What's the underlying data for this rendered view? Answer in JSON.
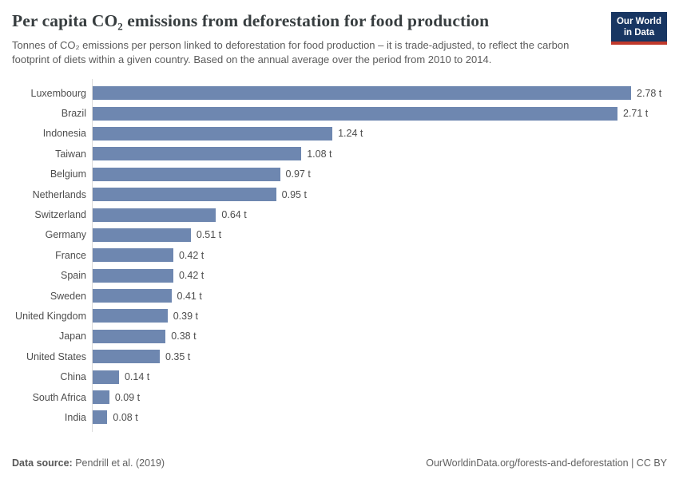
{
  "header": {
    "title": "Per capita CO₂ emissions from deforestation for food production",
    "subtitle": "Tonnes of CO₂ emissions per person linked to deforestation for food production – it is trade-adjusted, to reflect the carbon footprint of diets within a given country. Based on the annual average over the period from 2010 to 2014.",
    "logo_line1": "Our World",
    "logo_line2": "in Data"
  },
  "chart_data": {
    "type": "bar",
    "orientation": "horizontal",
    "title": "Per capita CO₂ emissions from deforestation for food production",
    "xlabel": "",
    "ylabel": "",
    "unit": "t",
    "xlim": [
      0,
      2.78
    ],
    "grid": false,
    "legend": false,
    "categories": [
      "Luxembourg",
      "Brazil",
      "Indonesia",
      "Taiwan",
      "Belgium",
      "Netherlands",
      "Switzerland",
      "Germany",
      "France",
      "Spain",
      "Sweden",
      "United Kingdom",
      "Japan",
      "United States",
      "China",
      "South Africa",
      "India"
    ],
    "values": [
      2.78,
      2.71,
      1.24,
      1.08,
      0.97,
      0.95,
      0.64,
      0.51,
      0.42,
      0.42,
      0.41,
      0.39,
      0.38,
      0.35,
      0.14,
      0.09,
      0.08
    ],
    "value_labels": [
      "2.78 t",
      "2.71 t",
      "1.24 t",
      "1.08 t",
      "0.97 t",
      "0.95 t",
      "0.64 t",
      "0.51 t",
      "0.42 t",
      "0.42 t",
      "0.41 t",
      "0.39 t",
      "0.38 t",
      "0.35 t",
      "0.14 t",
      "0.09 t",
      "0.08 t"
    ],
    "bar_color": "#6e87b0"
  },
  "footer": {
    "source_label": "Data source:",
    "source_value": "Pendrill et al. (2019)",
    "link_text": "OurWorldinData.org/forests-and-deforestation | CC BY"
  },
  "colors": {
    "bar": "#6e87b0",
    "logo_navy": "#183662",
    "logo_red": "#c0392b",
    "axis_line": "#dcdcdc",
    "title_text": "#373d3f",
    "body_text": "#5b5b5b"
  }
}
